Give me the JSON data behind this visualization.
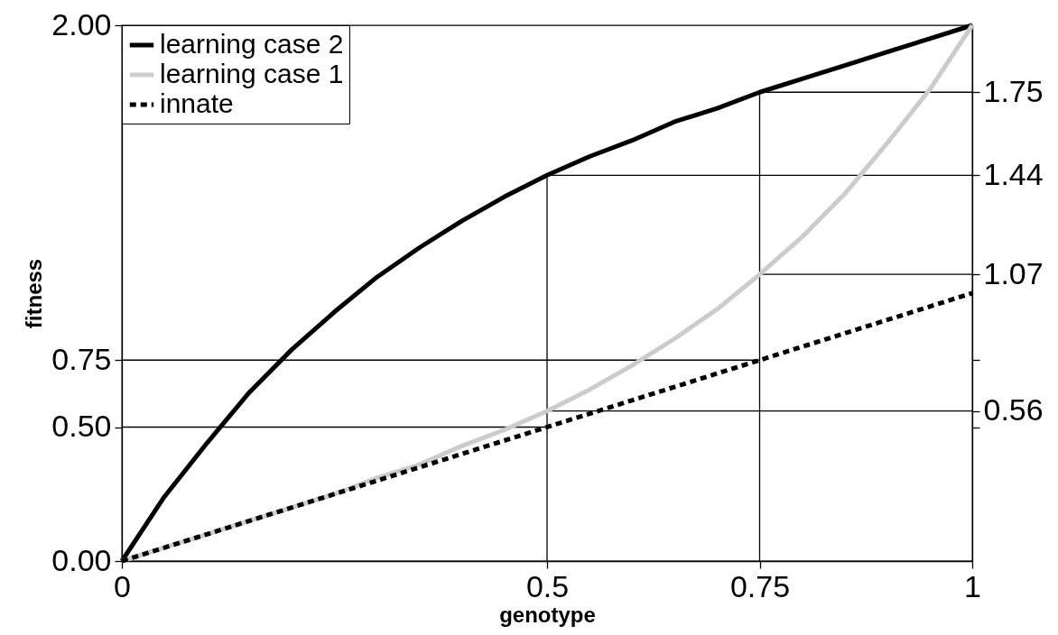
{
  "chart_data": {
    "type": "line",
    "xlabel": "genotype",
    "ylabel": "fitness",
    "xlim": [
      0,
      1
    ],
    "xticks": [
      0,
      0.5,
      0.75,
      1
    ],
    "ylim": [
      0,
      2
    ],
    "yticks": [
      {
        "value": 0,
        "label": "0.00"
      },
      {
        "value": 0.5,
        "label": "0.50"
      },
      {
        "value": 0.75,
        "label": "0.75"
      },
      {
        "value": 2,
        "label": "2.00"
      }
    ],
    "y2lim": [
      0,
      2
    ],
    "y2ticks": [
      {
        "value": 0.5,
        "label": null
      },
      {
        "value": 0.56,
        "label": "0.56"
      },
      {
        "value": 0.75,
        "label": null
      },
      {
        "value": 1.07,
        "label": "1.07"
      },
      {
        "value": 1.44,
        "label": "1.44"
      },
      {
        "value": 1.75,
        "label": "1.75"
      }
    ],
    "legend": "top left",
    "series": [
      {
        "type": "line",
        "color": "#000000",
        "x": [
          0,
          0.75
        ],
        "values": [
          0.75,
          0.75
        ]
      },
      {
        "type": "line",
        "color": "#000000",
        "x": [
          0,
          0.5
        ],
        "values": [
          0.5,
          0.5
        ]
      },
      {
        "type": "line",
        "color": "#000000",
        "x": [
          0.5,
          0.5
        ],
        "values": [
          0,
          1.44
        ]
      },
      {
        "type": "line",
        "color": "#000000",
        "x": [
          0.75,
          0.75
        ],
        "values": [
          0,
          1.75
        ]
      },
      {
        "type": "line",
        "color": "#000000",
        "axis": "y2",
        "x": [
          0.75,
          1
        ],
        "values": [
          1.75,
          1.75
        ]
      },
      {
        "type": "line",
        "color": "#000000",
        "axis": "y2",
        "x": [
          0.5,
          1
        ],
        "values": [
          1.44,
          1.44
        ]
      },
      {
        "type": "line",
        "color": "#000000",
        "axis": "y2",
        "x": [
          0.75,
          1
        ],
        "values": [
          1.07,
          1.07
        ]
      },
      {
        "type": "line",
        "color": "#000000",
        "axis": "y2",
        "x": [
          0.5,
          1
        ],
        "values": [
          0.56,
          0.56
        ]
      },
      {
        "name": "learning case 2",
        "color": "#000000",
        "line_style": "solid",
        "x": [
          0,
          0.05,
          0.1,
          0.15,
          0.2,
          0.25,
          0.3,
          0.35,
          0.4,
          0.45,
          0.5,
          0.55,
          0.6,
          0.65,
          0.7,
          0.75,
          0.8,
          0.85,
          0.9,
          0.95,
          1
        ],
        "values": [
          0,
          0.24,
          0.44,
          0.63,
          0.79,
          0.93,
          1.06,
          1.17,
          1.27,
          1.36,
          1.44,
          1.51,
          1.57,
          1.64,
          1.69,
          1.75,
          1.8,
          1.85,
          1.9,
          1.95,
          2
        ]
      },
      {
        "name": "learning case 1",
        "color": "#cccccc",
        "line_style": "solid",
        "x": [
          0,
          0.05,
          0.1,
          0.15,
          0.2,
          0.25,
          0.3,
          0.35,
          0.4,
          0.45,
          0.5,
          0.55,
          0.6,
          0.65,
          0.7,
          0.75,
          0.8,
          0.85,
          0.9,
          0.95,
          1
        ],
        "values": [
          0,
          0.05,
          0.1,
          0.15,
          0.2,
          0.25,
          0.31,
          0.36,
          0.43,
          0.49,
          0.56,
          0.64,
          0.73,
          0.83,
          0.94,
          1.07,
          1.21,
          1.37,
          1.56,
          1.76,
          2
        ]
      },
      {
        "name": "innate",
        "color": "#000000",
        "line_style": "dashed",
        "x": [
          0,
          1
        ],
        "values": [
          0,
          1
        ]
      }
    ]
  }
}
